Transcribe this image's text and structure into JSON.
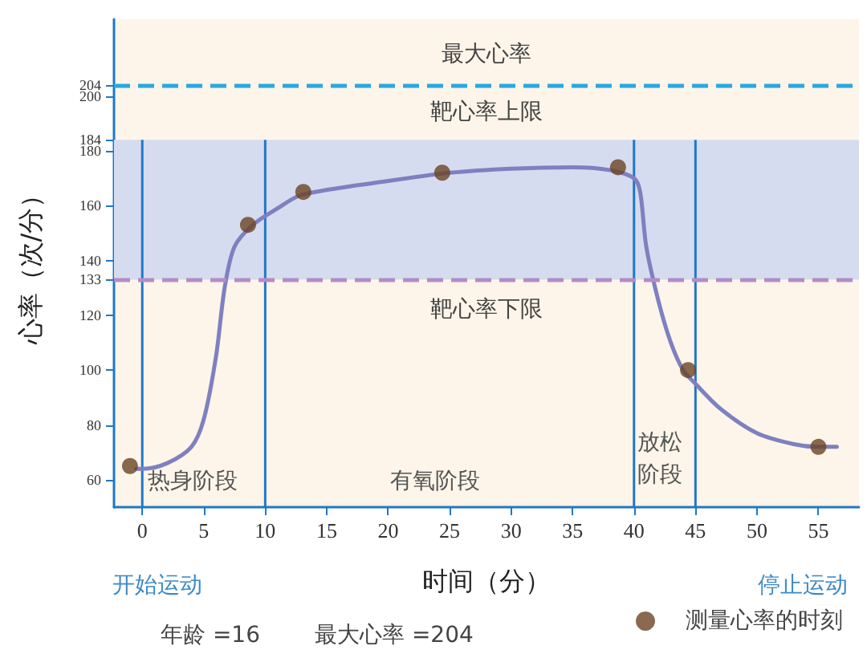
{
  "chart_data": {
    "type": "line",
    "xlabel": "时间（分）",
    "ylabel": "心率（次/分）",
    "xlim": [
      -2.3,
      58.3
    ],
    "xticks": [
      0,
      5,
      10,
      15,
      20,
      25,
      30,
      35,
      40,
      45,
      50,
      55
    ],
    "ylim": [
      50,
      228
    ],
    "yticks": [
      60,
      80,
      100,
      120,
      133,
      140,
      160,
      180,
      184,
      200,
      204
    ],
    "grid": false,
    "legend": "bottom right",
    "series": [
      {
        "color": "#7f80c0",
        "marker": "none",
        "x": [
          -0.5,
          0,
          2,
          4,
          5,
          6,
          6.7,
          7.5,
          9,
          11,
          13,
          20,
          25,
          30,
          35,
          38,
          40,
          40.5,
          41,
          42,
          43,
          44,
          45,
          47,
          50,
          53,
          55,
          56.5
        ],
        "values": [
          64,
          64,
          66,
          72,
          82,
          105,
          130,
          145,
          153,
          159,
          164,
          169,
          172,
          173.5,
          174,
          173,
          170,
          165,
          145,
          125,
          110,
          100,
          95,
          86,
          77,
          73,
          72,
          72
        ]
      },
      {
        "type": "scatter",
        "name": "测量心率的时刻",
        "color": "#6b4424",
        "marker": "circle",
        "x": [
          -1,
          8.6,
          13.1,
          24.4,
          38.7,
          44.4,
          55
        ],
        "values": [
          65,
          153,
          165,
          172,
          174,
          100,
          72
        ]
      }
    ],
    "ref_lines": [
      {
        "axis": "y",
        "value": 204,
        "label": "最大心率",
        "color": "#29a8e0",
        "line_style": "dashed"
      },
      {
        "axis": "y",
        "value": 133,
        "label": "靶心率下限",
        "color": "#b48cc8",
        "line_style": "dashed"
      },
      {
        "axis": "x",
        "value": 0,
        "color": "#1f78c8",
        "line_style": "solid"
      },
      {
        "axis": "x",
        "value": 10,
        "color": "#1f78c8",
        "line_style": "solid"
      },
      {
        "axis": "x",
        "value": 40,
        "color": "#1f78c8",
        "line_style": "solid"
      },
      {
        "axis": "x",
        "value": 45,
        "color": "#1f78c8",
        "line_style": "solid"
      }
    ],
    "bands": [
      {
        "axis": "y",
        "from": 133,
        "to": 184,
        "label": "靶心率上限",
        "color": "#d6dcef"
      }
    ],
    "annotations": [
      "热身阶段",
      "有氧阶段",
      "放松阶段",
      "开始运动",
      "停止运动",
      "年龄 =16",
      "最大心率 =204"
    ]
  }
}
